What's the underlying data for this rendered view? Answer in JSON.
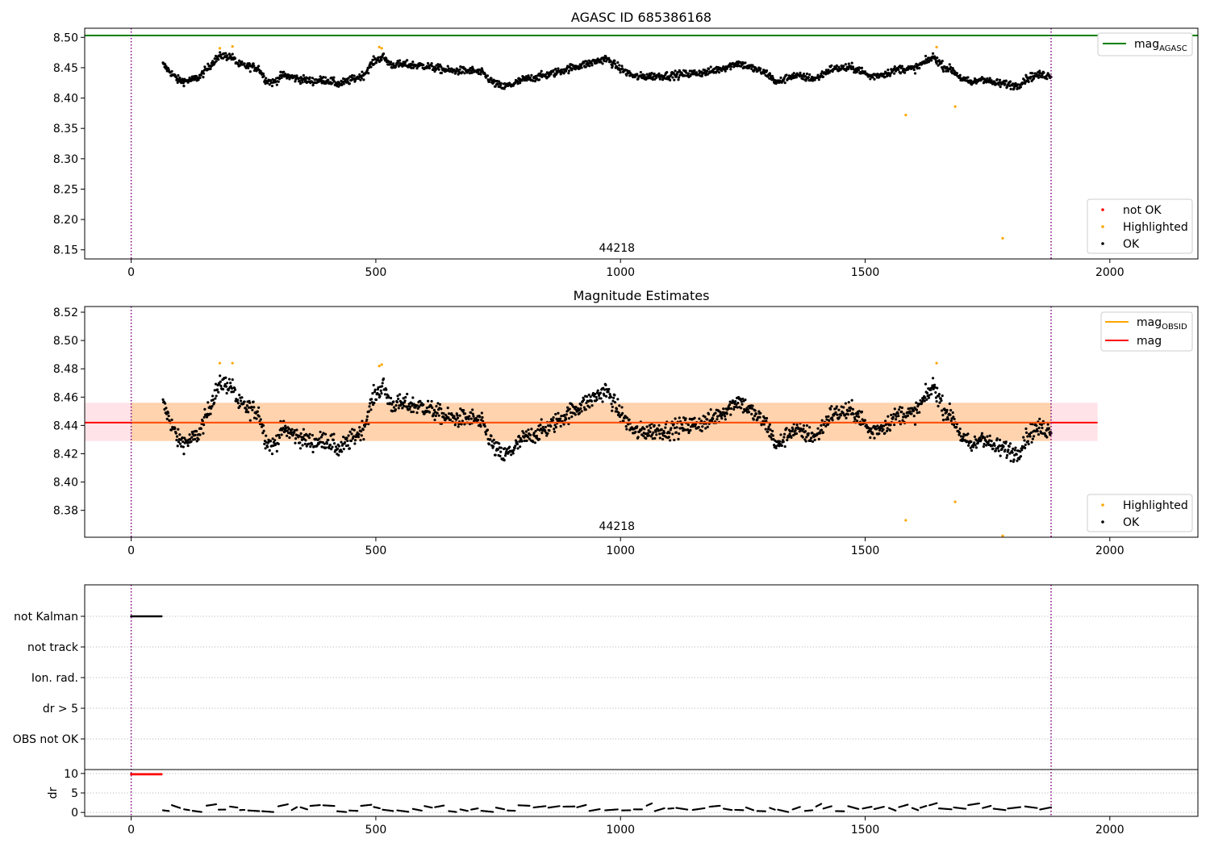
{
  "chart_data": [
    {
      "type": "scatter",
      "title": "AGASC ID 685386168",
      "xlim": [
        -95,
        2180
      ],
      "ylim": [
        8.135,
        8.515
      ],
      "xticks": [
        0,
        500,
        1000,
        1500,
        2000
      ],
      "yticks": [
        8.15,
        8.2,
        8.25,
        8.3,
        8.35,
        8.4,
        8.45,
        8.5
      ],
      "vlines": [
        0,
        1880
      ],
      "hline": 8.503,
      "annotation": {
        "text": "44218",
        "x": 940,
        "y": 8.15
      },
      "legend_line": {
        "label": "mag",
        "sub": "AGASC"
      },
      "legend_points": [
        {
          "label": "not OK",
          "color": "#ff0000"
        },
        {
          "label": "Highlighted",
          "color": "#ffa500"
        },
        {
          "label": "OK",
          "color": "#000000"
        }
      ],
      "highlighted": [
        [
          181,
          8.482
        ],
        [
          207,
          8.485
        ],
        [
          507,
          8.484
        ],
        [
          512,
          8.482
        ],
        [
          1583,
          8.372
        ],
        [
          1646,
          8.484
        ],
        [
          1684,
          8.386
        ],
        [
          1781,
          8.169
        ]
      ],
      "ok_knots": [
        [
          65,
          8.455
        ],
        [
          80,
          8.443
        ],
        [
          95,
          8.43
        ],
        [
          110,
          8.428
        ],
        [
          125,
          8.43
        ],
        [
          140,
          8.435
        ],
        [
          155,
          8.448
        ],
        [
          170,
          8.462
        ],
        [
          185,
          8.47
        ],
        [
          205,
          8.468
        ],
        [
          220,
          8.455
        ],
        [
          240,
          8.452
        ],
        [
          260,
          8.45
        ],
        [
          275,
          8.43
        ],
        [
          290,
          8.425
        ],
        [
          310,
          8.438
        ],
        [
          340,
          8.432
        ],
        [
          370,
          8.428
        ],
        [
          400,
          8.43
        ],
        [
          425,
          8.423
        ],
        [
          450,
          8.43
        ],
        [
          475,
          8.438
        ],
        [
          495,
          8.46
        ],
        [
          515,
          8.468
        ],
        [
          530,
          8.455
        ],
        [
          560,
          8.455
        ],
        [
          600,
          8.453
        ],
        [
          650,
          8.445
        ],
        [
          700,
          8.445
        ],
        [
          720,
          8.44
        ],
        [
          740,
          8.425
        ],
        [
          760,
          8.418
        ],
        [
          780,
          8.423
        ],
        [
          800,
          8.43
        ],
        [
          850,
          8.438
        ],
        [
          900,
          8.45
        ],
        [
          940,
          8.458
        ],
        [
          970,
          8.465
        ],
        [
          1000,
          8.448
        ],
        [
          1030,
          8.435
        ],
        [
          1060,
          8.436
        ],
        [
          1100,
          8.437
        ],
        [
          1140,
          8.44
        ],
        [
          1180,
          8.443
        ],
        [
          1220,
          8.452
        ],
        [
          1240,
          8.458
        ],
        [
          1260,
          8.452
        ],
        [
          1300,
          8.44
        ],
        [
          1320,
          8.425
        ],
        [
          1350,
          8.437
        ],
        [
          1400,
          8.432
        ],
        [
          1430,
          8.448
        ],
        [
          1470,
          8.45
        ],
        [
          1490,
          8.446
        ],
        [
          1510,
          8.435
        ],
        [
          1540,
          8.44
        ],
        [
          1570,
          8.448
        ],
        [
          1600,
          8.448
        ],
        [
          1620,
          8.458
        ],
        [
          1640,
          8.468
        ],
        [
          1660,
          8.452
        ],
        [
          1680,
          8.445
        ],
        [
          1700,
          8.43
        ],
        [
          1720,
          8.425
        ],
        [
          1740,
          8.433
        ],
        [
          1760,
          8.425
        ],
        [
          1790,
          8.423
        ],
        [
          1810,
          8.42
        ],
        [
          1830,
          8.432
        ],
        [
          1850,
          8.438
        ],
        [
          1880,
          8.437
        ]
      ],
      "ok_count": 1700,
      "ok_range": [
        65,
        1880
      ],
      "ok_noise": 0.004
    },
    {
      "type": "scatter",
      "title": "Magnitude Estimates",
      "xlim": [
        -95,
        2180
      ],
      "ylim": [
        8.361,
        8.524
      ],
      "xticks": [
        0,
        500,
        1000,
        1500,
        2000
      ],
      "yticks": [
        8.38,
        8.4,
        8.42,
        8.44,
        8.46,
        8.48,
        8.5,
        8.52
      ],
      "vlines": [
        0,
        1880
      ],
      "mag": 8.442,
      "band_outer": [
        8.429,
        8.456
      ],
      "band_x": [
        -95,
        1975
      ],
      "band_inner_x": [
        0,
        1880
      ],
      "annotation": {
        "text": "44218",
        "x": 940,
        "y": 8.361
      },
      "legend_lines": [
        {
          "label": "mag",
          "sub": "OBSID",
          "color": "#ffa500"
        },
        {
          "label": "mag",
          "sub": "",
          "color": "#ff0000"
        }
      ],
      "legend_points": [
        {
          "label": "Highlighted",
          "color": "#ffa500"
        },
        {
          "label": "OK",
          "color": "#000000"
        }
      ],
      "highlighted": [
        [
          181,
          8.484
        ],
        [
          207,
          8.484
        ],
        [
          507,
          8.482
        ],
        [
          512,
          8.483
        ],
        [
          1583,
          8.373
        ],
        [
          1646,
          8.484
        ],
        [
          1684,
          8.386
        ],
        [
          1781,
          8.362
        ]
      ]
    },
    {
      "type": "status",
      "xlim": [
        -95,
        2180
      ],
      "xticks": [
        0,
        500,
        1000,
        1500,
        2000
      ],
      "vlines": [
        0,
        1880
      ],
      "rows": [
        "not Kalman",
        "not track",
        "Ion. rad.",
        "dr > 5",
        "OBS not OK"
      ],
      "not_kalman_x": [
        0,
        62
      ],
      "dr_label": "dr",
      "dr_yticks": [
        0,
        5,
        10
      ],
      "dr_ylim": [
        -1,
        11
      ],
      "dr_red_x": [
        0,
        62
      ],
      "dr_red_y": 9.8,
      "dr_segment_range": [
        65,
        1880
      ]
    }
  ]
}
